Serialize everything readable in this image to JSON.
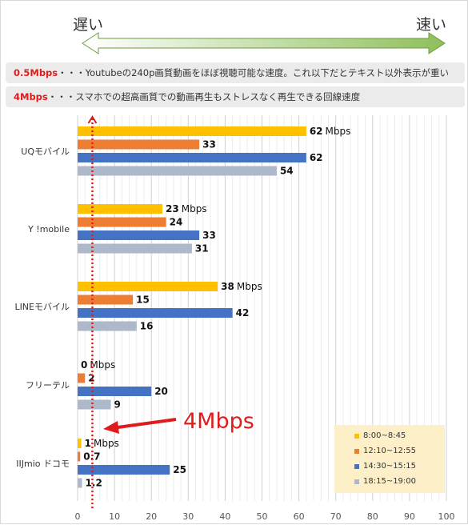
{
  "header": {
    "slow_label": "遅い",
    "fast_label": "速い"
  },
  "notes": [
    {
      "highlight": "0.5Mbps",
      "text": "・・・Youtubeの240p画質動画をほぼ視聴可能な速度。これ以下だとテキスト以外表示が重い"
    },
    {
      "highlight": "4Mbps",
      "text": "・・・スマホでの超高画質での動画再生もストレスなく再生できる回線速度"
    }
  ],
  "callout": {
    "text": "4Mbps",
    "reference_value": 4
  },
  "colors": {
    "series": [
      "#ffc000",
      "#ed7d31",
      "#4472c4",
      "#adb9ca"
    ],
    "accent_red": "#e01b1b",
    "arrow_gradient": [
      "#ffffff",
      "#8fbf5b"
    ],
    "legend_bg": "#fdf0c9"
  },
  "chart_data": {
    "type": "bar",
    "orientation": "horizontal",
    "categories": [
      "UQモバイル",
      "Y !mobile",
      "LINEモバイル",
      "フリーテル",
      "IIJmio ドコモ"
    ],
    "series": [
      {
        "name": "8:00~8:45",
        "values": [
          62,
          23,
          38,
          0,
          1
        ]
      },
      {
        "name": "12:10~12:55",
        "values": [
          33,
          24,
          15,
          2,
          0.7
        ]
      },
      {
        "name": "14:30~15:15",
        "values": [
          62,
          33,
          42,
          20,
          25
        ]
      },
      {
        "name": "18:15~19:00",
        "values": [
          54,
          31,
          16,
          9,
          1.2
        ]
      }
    ],
    "value_labels": [
      [
        "62",
        "33",
        "62",
        "54"
      ],
      [
        "23",
        "24",
        "33",
        "31"
      ],
      [
        "38",
        "15",
        "42",
        "16"
      ],
      [
        "0",
        "2",
        "20",
        "9"
      ],
      [
        "1",
        "0.7",
        "25",
        "1.2"
      ]
    ],
    "unit_label": "Mbps",
    "xlim": [
      0,
      100
    ],
    "xticks": [
      0,
      10,
      20,
      30,
      40,
      50,
      60,
      70,
      80,
      90,
      100
    ],
    "grid": true,
    "legend_position": "bottom-right"
  }
}
